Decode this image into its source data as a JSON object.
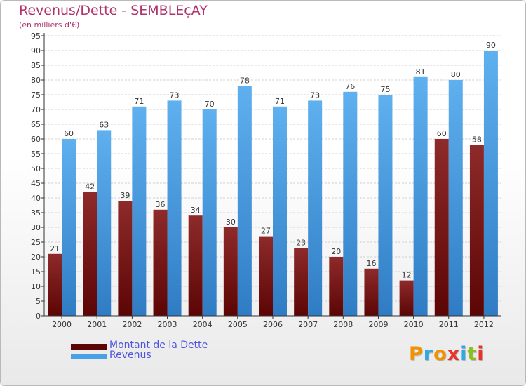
{
  "chart_data": {
    "type": "bar",
    "title": "Revenus/Dette - SEMBLEçAY",
    "subtitle": "(en milliers d'€)",
    "categories": [
      "2000",
      "2001",
      "2002",
      "2003",
      "2004",
      "2005",
      "2006",
      "2007",
      "2008",
      "2009",
      "2010",
      "2011",
      "2012"
    ],
    "series": [
      {
        "name": "Montant de la Dette",
        "color": "#7a1414",
        "values": [
          21,
          42,
          39,
          36,
          34,
          30,
          27,
          23,
          20,
          16,
          12,
          60,
          58
        ]
      },
      {
        "name": "Revenus",
        "color": "#4aa0e6",
        "values": [
          60,
          63,
          71,
          73,
          70,
          78,
          71,
          73,
          76,
          75,
          81,
          80,
          90
        ]
      }
    ],
    "ylim": [
      0,
      95
    ],
    "ytick_step": 5,
    "grid": true,
    "legend_position": "bottom-left"
  },
  "logo": {
    "text": "Proxiti",
    "colors": [
      "#f39200",
      "#33a8e0",
      "#f39200",
      "#e7332a",
      "#33a8e0",
      "#8cbe22",
      "#e7332a"
    ]
  }
}
